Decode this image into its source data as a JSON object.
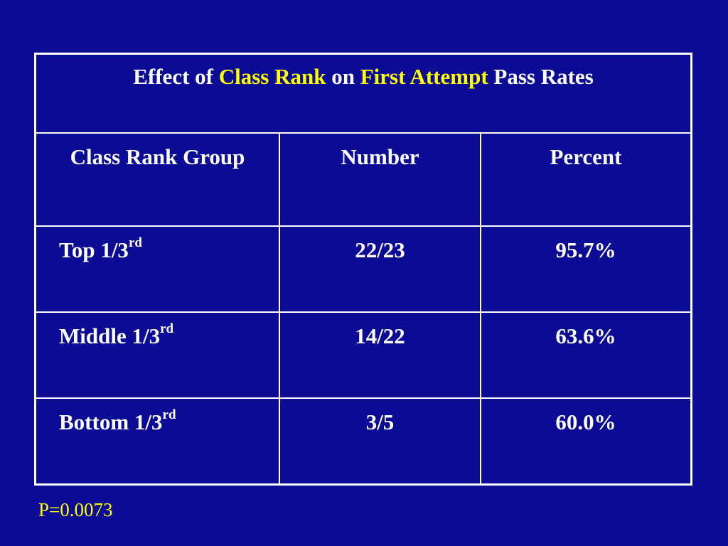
{
  "title": {
    "part1": "Effect of ",
    "highlight1": "Class Rank",
    "part2": " on ",
    "highlight2": "First Attempt",
    "part3": " Pass Rates"
  },
  "colors": {
    "background": "#0b0b95",
    "text": "#ffffff",
    "highlight": "#ffff00",
    "border": "#ffffff"
  },
  "table": {
    "headers": [
      "Class Rank Group",
      "Number",
      "Percent"
    ],
    "rows": [
      {
        "group": "Top 1/3",
        "suffix": "rd",
        "number": "22/23",
        "percent": "95.7%"
      },
      {
        "group": "Middle 1/3",
        "suffix": "rd",
        "number": "14/22",
        "percent": "63.6%"
      },
      {
        "group": "Bottom 1/3",
        "suffix": "rd",
        "number": "3/5",
        "percent": "60.0%"
      }
    ]
  },
  "footnote": "P=0.0073"
}
